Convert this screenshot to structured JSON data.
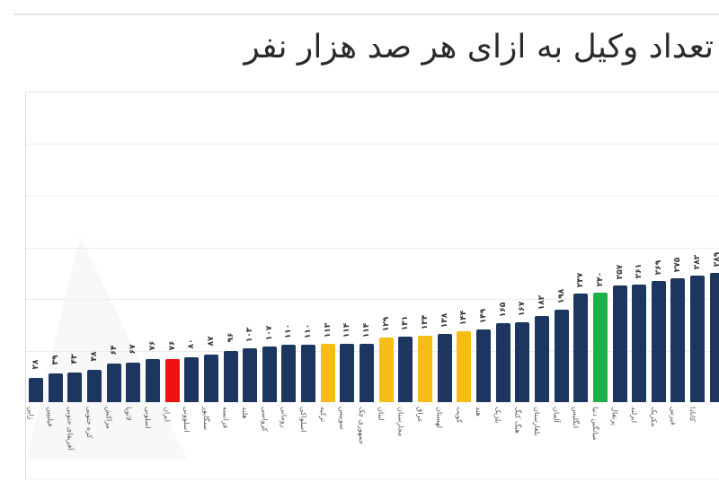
{
  "title": "تعداد وکیل به ازای هر صد هزار نفر",
  "colors": {
    "default": "#1c3660",
    "iran": "#ee1111",
    "neighbors": "#f6bd17",
    "world_average": "#1db04a"
  },
  "chart_data": {
    "type": "bar",
    "title": "تعداد وکیل به ازای هر صد هزار نفر",
    "xlabel": "",
    "ylabel": "",
    "grid": true,
    "legend": "none",
    "categories": [
      "ژاپن",
      "فیلیپین",
      "آفریقای جنوبی",
      "کره جنوبی",
      "مراکش",
      "لاتویا",
      "اسلونی",
      "ایران",
      "اسلوونی",
      "سنگاپور",
      "فرانسه",
      "هلند",
      "کرواسی",
      "رومانی",
      "اسلواکی",
      "ترکیه",
      "سوییس",
      "جمهوری چک",
      "لبنان",
      "مجارستان",
      "عراق",
      "لهستان",
      "کویت",
      "هند",
      "بلژیک",
      "هنگ کنگ",
      "بلغارستان",
      "آلمان",
      "انگلیس",
      "میانگین دنیا",
      "پرتغال",
      "ایرلند",
      "مکزیک",
      "قبرس",
      "کانادا",
      ""
    ],
    "values": [
      28,
      39,
      43,
      48,
      64,
      67,
      76,
      76,
      80,
      87,
      96,
      103,
      107,
      110,
      110,
      113,
      114,
      114,
      129,
      131,
      134,
      138,
      144,
      149,
      165,
      167,
      182,
      198,
      237,
      240,
      257,
      261,
      269,
      275,
      282,
      289
    ],
    "value_labels": [
      "۲۸",
      "۳۹",
      "۴۳",
      "۴۸",
      "۶۴",
      "۶۷",
      "۷۶",
      "۷۶",
      "۸۰",
      "۸۷",
      "۹۶",
      "۱۰۳",
      "۱۰۷",
      "۱۱۰",
      "۱۱۰",
      "۱۱۳",
      "۱۱۴",
      "۱۱۴",
      "۱۲۹",
      "۱۳۱",
      "۱۳۴",
      "۱۳۸",
      "۱۴۴",
      "۱۴۹",
      "۱۶۵",
      "۱۶۷",
      "۱۸۲",
      "۱۹۸",
      "۲۳۷",
      "۲۴۰",
      "۲۵۷",
      "۲۶۱",
      "۲۶۹",
      "۲۷۵",
      "۲۸۲",
      "۲۸۹"
    ],
    "highlight": [
      "default",
      "default",
      "default",
      "default",
      "default",
      "default",
      "default",
      "iran",
      "default",
      "default",
      "default",
      "default",
      "default",
      "default",
      "default",
      "neighbors",
      "default",
      "default",
      "neighbors",
      "default",
      "neighbors",
      "default",
      "neighbors",
      "default",
      "default",
      "default",
      "default",
      "default",
      "default",
      "world_average",
      "default",
      "default",
      "default",
      "default",
      "default",
      "default"
    ]
  }
}
